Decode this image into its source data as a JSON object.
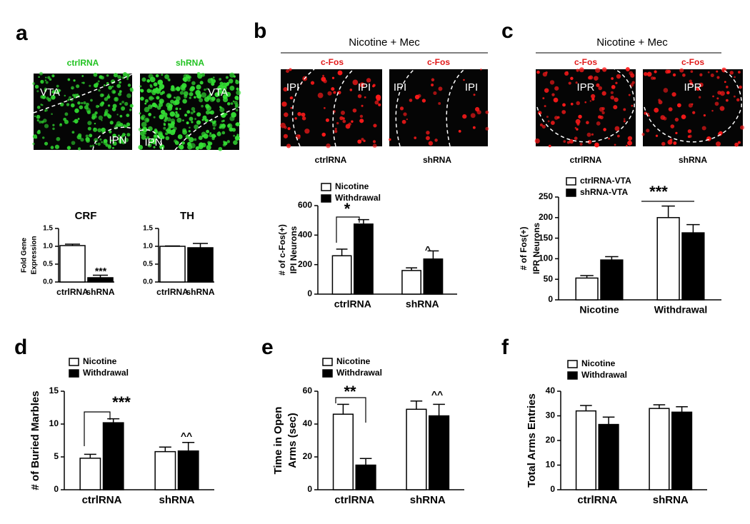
{
  "figure": {
    "panel_labels": [
      "a",
      "b",
      "c",
      "d",
      "e",
      "f"
    ],
    "a_images": {
      "titles": [
        "ctrlRNA",
        "shRNA"
      ],
      "regions": [
        [
          "VTA",
          "IPN"
        ],
        [
          "VTA",
          "IPN"
        ]
      ]
    },
    "b_header": "Nicotine + Mec",
    "b_images": {
      "stains": [
        "c-Fos",
        "c-Fos"
      ],
      "regions": [
        [
          "IPI",
          "IPI"
        ],
        [
          "IPI",
          "IPI"
        ]
      ],
      "captions": [
        "ctrlRNA",
        "shRNA"
      ]
    },
    "c_header": "Nicotine + Mec",
    "c_images": {
      "stains": [
        "c-Fos",
        "c-Fos"
      ],
      "regions": [
        "IPR",
        "IPR"
      ],
      "captions": [
        "ctrlRNA",
        "shRNA"
      ]
    }
  },
  "chart_data": [
    {
      "type": "bar",
      "title": "CRF",
      "ylabel": [
        "Fold Gene",
        "Expression"
      ],
      "categories": [
        "ctrlRNA",
        "shRNA"
      ],
      "values": [
        1.02,
        0.12
      ],
      "errors": [
        0.04,
        0.07
      ],
      "colors": [
        "#ffffff",
        "#000000"
      ],
      "ylim": [
        0,
        1.5
      ],
      "yticks": [
        {
          "value": 0,
          "label": "0.0"
        },
        0.5,
        {
          "value": 1,
          "label": "1.0"
        },
        1.5
      ],
      "annotations": [
        "***"
      ]
    },
    {
      "type": "bar",
      "title": "TH",
      "categories": [
        "ctrlRNA",
        "shRNA"
      ],
      "values": [
        1.0,
        0.96
      ],
      "errors": [
        0.01,
        0.12
      ],
      "colors": [
        "#ffffff",
        "#000000"
      ],
      "ylim": [
        0,
        1.5
      ],
      "yticks": [
        {
          "value": 0,
          "label": "0.0"
        },
        0.5,
        {
          "value": 1,
          "label": "1.0"
        },
        1.5
      ],
      "annotations": []
    },
    {
      "type": "grouped_bar",
      "ylabel": [
        "# of c-Fos(+)",
        "IPI Neurons"
      ],
      "categories": [
        "ctrlRNA",
        "shRNA"
      ],
      "series": [
        {
          "name": "Nicotine",
          "color": "#ffffff",
          "values": [
            260,
            160
          ],
          "errors": [
            45,
            18
          ]
        },
        {
          "name": "Withdrawal",
          "color": "#000000",
          "values": [
            475,
            238
          ],
          "errors": [
            30,
            55
          ]
        }
      ],
      "ylim": [
        0,
        600
      ],
      "yticks": [
        0,
        200,
        400,
        600
      ],
      "annotations": [
        "*",
        "^"
      ]
    },
    {
      "type": "grouped_bar",
      "ylabel": [
        "# of Fos(+)",
        "IPR Neurons"
      ],
      "categories": [
        "Nicotine",
        "Withdrawal"
      ],
      "series": [
        {
          "name": "ctrlRNA-VTA",
          "color": "#ffffff",
          "values": [
            53,
            200
          ],
          "errors": [
            6,
            28
          ]
        },
        {
          "name": "shRNA-VTA",
          "color": "#000000",
          "values": [
            97,
            163
          ],
          "errors": [
            8,
            20
          ]
        }
      ],
      "ylim": [
        0,
        250
      ],
      "yticks": [
        0,
        50,
        100,
        150,
        200,
        250
      ],
      "annotations": [
        "***"
      ]
    },
    {
      "type": "grouped_bar",
      "ylabel": [
        "# of Buried Marbles"
      ],
      "categories": [
        "ctrlRNA",
        "shRNA"
      ],
      "series": [
        {
          "name": "Nicotine",
          "color": "#ffffff",
          "values": [
            4.8,
            5.8
          ],
          "errors": [
            0.6,
            0.7
          ]
        },
        {
          "name": "Withdrawal",
          "color": "#000000",
          "values": [
            10.2,
            5.9
          ],
          "errors": [
            0.6,
            1.3
          ]
        }
      ],
      "ylim": [
        0,
        15
      ],
      "yticks": [
        0,
        5,
        10,
        15
      ],
      "annotations": [
        "***",
        "^^"
      ]
    },
    {
      "type": "grouped_bar",
      "ylabel": [
        "Time in Open",
        "Arms (sec)"
      ],
      "categories": [
        "ctrlRNA",
        "shRNA"
      ],
      "series": [
        {
          "name": "Nicotine",
          "color": "#ffffff",
          "values": [
            46,
            49
          ],
          "errors": [
            6,
            5
          ]
        },
        {
          "name": "Withdrawal",
          "color": "#000000",
          "values": [
            15,
            45
          ],
          "errors": [
            4,
            7
          ]
        }
      ],
      "ylim": [
        0,
        60
      ],
      "yticks": [
        0,
        20,
        40,
        60
      ],
      "annotations": [
        "**",
        "^^"
      ]
    },
    {
      "type": "grouped_bar",
      "ylabel": [
        "Total Arms Entries"
      ],
      "categories": [
        "ctrlRNA",
        "shRNA"
      ],
      "series": [
        {
          "name": "Nicotine",
          "color": "#ffffff",
          "values": [
            32,
            33
          ],
          "errors": [
            2.2,
            1.5
          ]
        },
        {
          "name": "Withdrawal",
          "color": "#000000",
          "values": [
            26.5,
            31.5
          ],
          "errors": [
            3,
            2.2
          ]
        }
      ],
      "ylim": [
        0,
        40
      ],
      "yticks": [
        0,
        10,
        20,
        30,
        40
      ],
      "annotations": []
    }
  ]
}
